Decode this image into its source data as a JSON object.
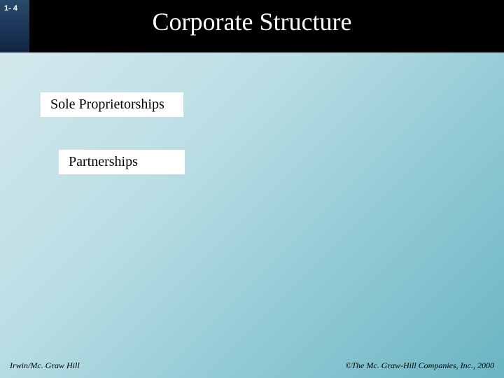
{
  "slide": {
    "number_label": "1- 4",
    "title": "Corporate Structure",
    "boxes": {
      "b1": "Sole Proprietorships",
      "b2": "Partnerships"
    },
    "footer": {
      "left": "Irwin/Mc. Graw Hill",
      "right": "©The Mc. Graw-Hill Companies, Inc., 2000"
    }
  }
}
